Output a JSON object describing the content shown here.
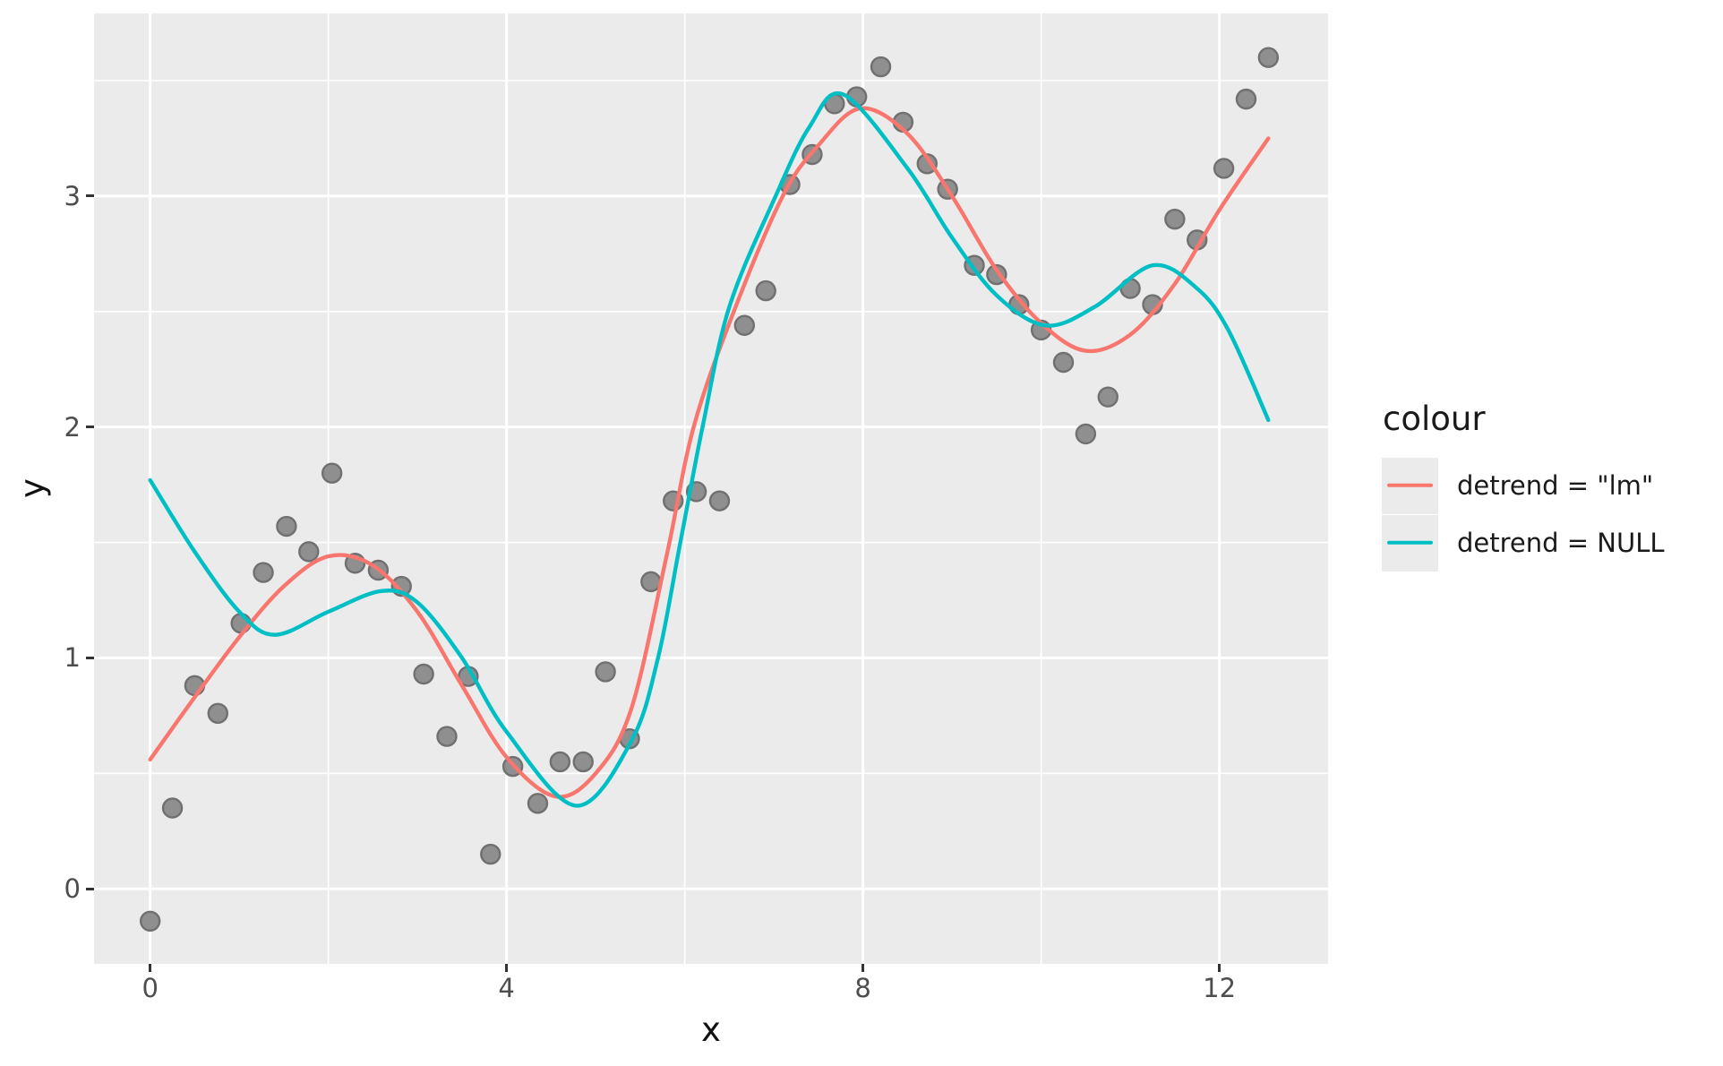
{
  "style": {
    "panel_bg": "#EBEBEB",
    "grid_color": "#FFFFFF",
    "point_fill": "#8F8F8F",
    "point_stroke": "#707070",
    "tick_color": "#333333",
    "tick_label_color": "#4D4D4D",
    "text_color": "#111111"
  },
  "legend": {
    "title": "colour",
    "entries": [
      {
        "label": "detrend = \"lm\"",
        "color": "#F8766D"
      },
      {
        "label": "detrend = NULL",
        "color": "#00BFC4"
      }
    ]
  },
  "chart_data": {
    "type": "scatter",
    "title": "",
    "xlabel": "x",
    "ylabel": "y",
    "x_domain": [
      -0.63,
      13.22
    ],
    "y_domain": [
      -0.325,
      3.791
    ],
    "x_breaks": [
      0,
      4,
      8,
      12
    ],
    "x_minor_breaks": [
      2,
      6,
      10
    ],
    "y_breaks": [
      0,
      1,
      2,
      3
    ],
    "y_minor_breaks": [
      0.5,
      1.5,
      2.5,
      3.5
    ],
    "grid": true,
    "legend_position": "right",
    "points": [
      [
        0.0,
        -0.14
      ],
      [
        0.25,
        0.35
      ],
      [
        0.5,
        0.88
      ],
      [
        0.76,
        0.76
      ],
      [
        1.02,
        1.15
      ],
      [
        1.27,
        1.37
      ],
      [
        1.53,
        1.57
      ],
      [
        1.78,
        1.46
      ],
      [
        2.04,
        1.8
      ],
      [
        2.3,
        1.41
      ],
      [
        2.56,
        1.38
      ],
      [
        2.82,
        1.31
      ],
      [
        3.07,
        0.93
      ],
      [
        3.33,
        0.66
      ],
      [
        3.57,
        0.92
      ],
      [
        3.82,
        0.15
      ],
      [
        4.07,
        0.53
      ],
      [
        4.35,
        0.37
      ],
      [
        4.6,
        0.55
      ],
      [
        4.86,
        0.55
      ],
      [
        5.11,
        0.94
      ],
      [
        5.38,
        0.65
      ],
      [
        5.62,
        1.33
      ],
      [
        5.87,
        1.68
      ],
      [
        6.13,
        1.72
      ],
      [
        6.39,
        1.68
      ],
      [
        6.67,
        2.44
      ],
      [
        6.91,
        2.59
      ],
      [
        7.18,
        3.05
      ],
      [
        7.43,
        3.18
      ],
      [
        7.68,
        3.4
      ],
      [
        7.93,
        3.43
      ],
      [
        8.2,
        3.56
      ],
      [
        8.45,
        3.32
      ],
      [
        8.72,
        3.14
      ],
      [
        8.95,
        3.03
      ],
      [
        9.25,
        2.7
      ],
      [
        9.5,
        2.66
      ],
      [
        9.75,
        2.53
      ],
      [
        10.0,
        2.42
      ],
      [
        10.25,
        2.28
      ],
      [
        10.5,
        1.97
      ],
      [
        10.75,
        2.13
      ],
      [
        11.0,
        2.6
      ],
      [
        11.25,
        2.53
      ],
      [
        11.5,
        2.9
      ],
      [
        11.75,
        2.81
      ],
      [
        12.05,
        3.12
      ],
      [
        12.3,
        3.42
      ],
      [
        12.55,
        3.6
      ]
    ],
    "series": [
      {
        "name": "detrend = \"lm\"",
        "type": "smooth-line",
        "color": "#F8766D",
        "points": [
          [
            0,
            0.56
          ],
          [
            0.5,
            0.83
          ],
          [
            1,
            1.09
          ],
          [
            1.5,
            1.31
          ],
          [
            2,
            1.44
          ],
          [
            2.5,
            1.4
          ],
          [
            3,
            1.2
          ],
          [
            3.5,
            0.88
          ],
          [
            4,
            0.57
          ],
          [
            4.55,
            0.4
          ],
          [
            5,
            0.5
          ],
          [
            5.4,
            0.78
          ],
          [
            5.8,
            1.45
          ],
          [
            6.1,
            2.0
          ],
          [
            6.55,
            2.5
          ],
          [
            7.1,
            3.0
          ],
          [
            7.5,
            3.22
          ],
          [
            7.97,
            3.38
          ],
          [
            8.5,
            3.27
          ],
          [
            9,
            3.0
          ],
          [
            9.5,
            2.68
          ],
          [
            10,
            2.45
          ],
          [
            10.5,
            2.33
          ],
          [
            11,
            2.4
          ],
          [
            11.5,
            2.62
          ],
          [
            12,
            2.94
          ],
          [
            12.55,
            3.25
          ]
        ]
      },
      {
        "name": "detrend = NULL",
        "type": "smooth-line",
        "color": "#00BFC4",
        "points": [
          [
            0,
            1.77
          ],
          [
            0.5,
            1.46
          ],
          [
            1,
            1.2
          ],
          [
            1.4,
            1.1
          ],
          [
            2,
            1.2
          ],
          [
            2.6,
            1.29
          ],
          [
            3,
            1.24
          ],
          [
            3.5,
            1.0
          ],
          [
            4,
            0.68
          ],
          [
            4.78,
            0.36
          ],
          [
            5.4,
            0.64
          ],
          [
            5.7,
            1.0
          ],
          [
            5.95,
            1.5
          ],
          [
            6.2,
            2.0
          ],
          [
            6.5,
            2.52
          ],
          [
            7.02,
            3.0
          ],
          [
            7.4,
            3.3
          ],
          [
            7.78,
            3.44
          ],
          [
            8.5,
            3.12
          ],
          [
            9,
            2.82
          ],
          [
            9.5,
            2.57
          ],
          [
            10.05,
            2.44
          ],
          [
            10.6,
            2.52
          ],
          [
            11.25,
            2.7
          ],
          [
            11.75,
            2.6
          ],
          [
            12.1,
            2.42
          ],
          [
            12.55,
            2.03
          ]
        ]
      }
    ]
  }
}
